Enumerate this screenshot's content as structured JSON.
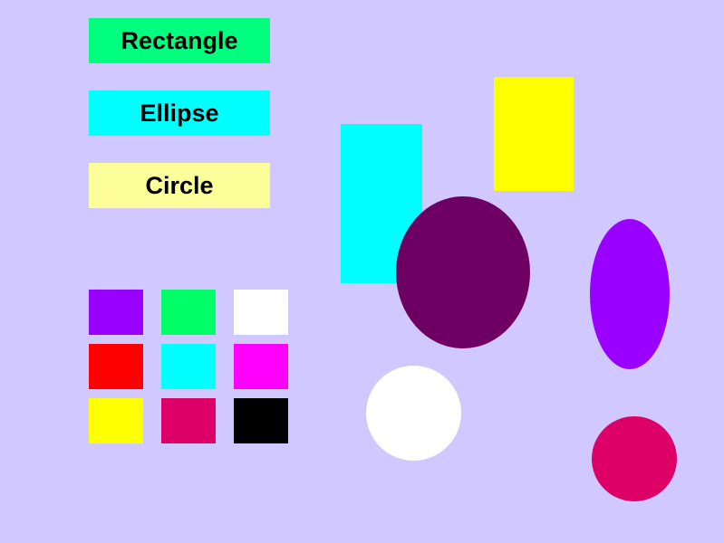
{
  "tools": {
    "rectangle": {
      "label": "Rectangle",
      "color": "#00ff7f"
    },
    "ellipse": {
      "label": "Ellipse",
      "color": "#00ffff"
    },
    "circle": {
      "label": "Circle",
      "color": "#fcff99"
    }
  },
  "palette": [
    {
      "name": "violet",
      "color": "#9900ff"
    },
    {
      "name": "green",
      "color": "#00ff66"
    },
    {
      "name": "white",
      "color": "#ffffff"
    },
    {
      "name": "red",
      "color": "#ff0000"
    },
    {
      "name": "cyan",
      "color": "#00ffff"
    },
    {
      "name": "magenta",
      "color": "#ff00ff"
    },
    {
      "name": "yellow",
      "color": "#ffff00"
    },
    {
      "name": "crimson",
      "color": "#dd0066"
    },
    {
      "name": "black",
      "color": "#000000"
    }
  ],
  "canvas": {
    "background": "#d0c8fe",
    "shapes": [
      {
        "kind": "rectangle",
        "color": "#00ffff"
      },
      {
        "kind": "rectangle",
        "color": "#ffff00"
      },
      {
        "kind": "ellipse",
        "color": "#6e0064"
      },
      {
        "kind": "ellipse",
        "color": "#9900ff"
      },
      {
        "kind": "circle",
        "color": "#ffffff"
      },
      {
        "kind": "circle",
        "color": "#dd0066"
      }
    ]
  }
}
